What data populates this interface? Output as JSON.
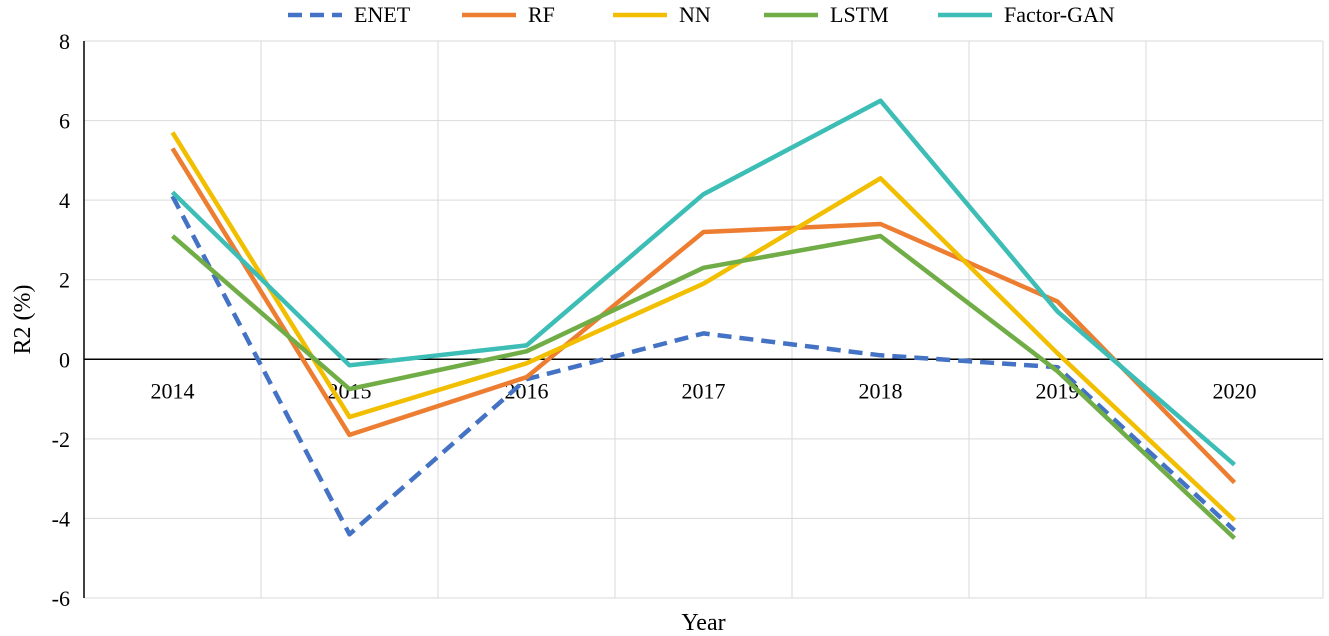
{
  "chart_data": {
    "type": "line",
    "title": "",
    "xlabel": "Year",
    "ylabel": "R2 (%)",
    "categories": [
      "2014",
      "2015",
      "2016",
      "2017",
      "2018",
      "2019",
      "2020"
    ],
    "ylim": [
      -6,
      8
    ],
    "yticks": [
      "8",
      "6",
      "4",
      "2",
      "0",
      "-2",
      "-4",
      "-6"
    ],
    "grid": true,
    "legend_position": "top",
    "series": [
      {
        "name": "ENET",
        "color": "#4472C4",
        "dashed": true,
        "values": [
          4.1,
          -4.4,
          -0.5,
          0.65,
          0.1,
          -0.2,
          -4.3
        ]
      },
      {
        "name": "RF",
        "color": "#ED7D31",
        "dashed": false,
        "values": [
          5.3,
          -1.9,
          -0.45,
          3.2,
          3.4,
          1.45,
          -3.1
        ]
      },
      {
        "name": "NN",
        "color": "#F2BE00",
        "dashed": false,
        "values": [
          5.7,
          -1.45,
          -0.1,
          1.9,
          4.55,
          0.15,
          -4.05
        ]
      },
      {
        "name": "LSTM",
        "color": "#70AD47",
        "dashed": false,
        "values": [
          3.1,
          -0.75,
          0.2,
          2.3,
          3.1,
          -0.3,
          -4.5
        ]
      },
      {
        "name": "Factor-GAN",
        "color": "#3CBDB5",
        "dashed": false,
        "values": [
          4.2,
          -0.15,
          0.35,
          4.15,
          6.5,
          1.2,
          -2.65
        ]
      }
    ]
  }
}
